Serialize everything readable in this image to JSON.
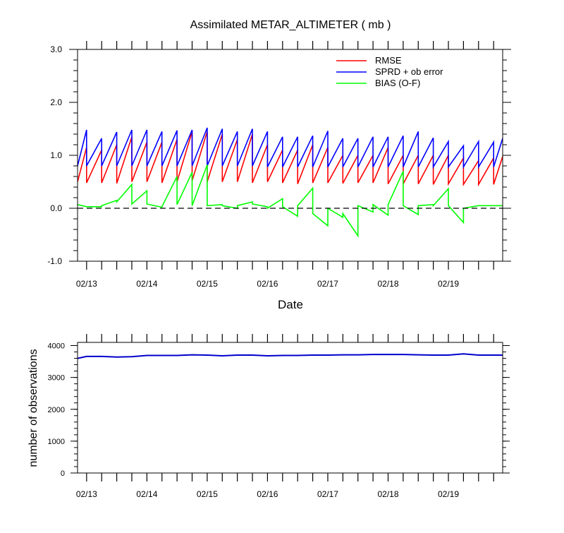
{
  "chart_data": [
    {
      "type": "line",
      "title": "Assimilated METAR_ALTIMETER ( mb )",
      "xlabel": "Date",
      "ylabel": "",
      "xlim": [
        12.85,
        19.9
      ],
      "ylim": [
        -1.0,
        3.0
      ],
      "yticks": [
        -1.0,
        0.0,
        1.0,
        2.0,
        3.0
      ],
      "ytick_labels": [
        "-1.0",
        "0.0",
        "1.0",
        "2.0",
        "3.0"
      ],
      "xticks": [
        13,
        14,
        15,
        16,
        17,
        18,
        19
      ],
      "xtick_labels": [
        "02/13",
        "02/14",
        "02/15",
        "02/16",
        "02/17",
        "02/18",
        "02/19"
      ],
      "reference_line": {
        "y": 0.0,
        "style": "dashed"
      },
      "legend": [
        "RMSE",
        "SPRD + ob error",
        "BIAS (O-F)"
      ],
      "legend_position": "top-right",
      "cycle_starts": [
        12.85,
        13.0,
        13.25,
        13.5,
        13.75,
        14.0,
        14.25,
        14.5,
        14.75,
        15.0,
        15.25,
        15.5,
        15.75,
        16.0,
        16.25,
        16.5,
        16.75,
        17.0,
        17.25,
        17.5,
        17.75,
        18.0,
        18.25,
        18.5,
        18.75,
        19.0,
        19.25,
        19.5,
        19.75
      ],
      "series": [
        {
          "name": "RMSE",
          "color": "#ff0000",
          "start": [
            0.5,
            0.48,
            0.48,
            0.47,
            0.5,
            0.5,
            0.48,
            0.5,
            0.52,
            0.5,
            0.5,
            0.5,
            0.48,
            0.5,
            0.48,
            0.46,
            0.48,
            0.48,
            0.47,
            0.48,
            0.48,
            0.46,
            0.46,
            0.46,
            0.45,
            0.46,
            0.45,
            0.45,
            0.45
          ],
          "end": [
            1.15,
            1.1,
            1.2,
            1.35,
            1.25,
            1.25,
            1.3,
            1.45,
            1.45,
            1.4,
            1.3,
            1.4,
            1.2,
            1.1,
            1.1,
            1.2,
            1.15,
            1.0,
            1.0,
            1.0,
            1.15,
            1.0,
            1.0,
            1.0,
            1.0,
            0.95,
            0.9,
            0.95,
            0.98
          ]
        },
        {
          "name": "SPRD + ob error",
          "color": "#0000ff",
          "start": [
            0.8,
            0.8,
            0.8,
            0.8,
            0.8,
            0.8,
            0.8,
            0.8,
            0.8,
            0.8,
            0.8,
            0.8,
            0.8,
            0.78,
            0.78,
            0.78,
            0.78,
            0.78,
            0.78,
            0.78,
            0.78,
            0.78,
            0.78,
            0.78,
            0.78,
            0.78,
            0.78,
            0.78,
            0.78
          ],
          "end": [
            1.48,
            1.32,
            1.44,
            1.48,
            1.48,
            1.45,
            1.47,
            1.48,
            1.52,
            1.5,
            1.45,
            1.5,
            1.45,
            1.35,
            1.35,
            1.37,
            1.46,
            1.32,
            1.32,
            1.35,
            1.35,
            1.37,
            1.45,
            1.33,
            1.26,
            1.18,
            1.26,
            1.25,
            1.32
          ]
        },
        {
          "name": "BIAS (O-F)",
          "color": "#00ff00",
          "start": [
            0.07,
            0.03,
            0.05,
            0.12,
            0.08,
            0.08,
            0.03,
            0.07,
            0.05,
            0.05,
            0.05,
            0.05,
            0.08,
            0.0,
            0.03,
            0.05,
            -0.1,
            0.0,
            -0.1,
            0.05,
            0.07,
            0.07,
            0.05,
            0.05,
            0.05,
            0.05,
            0.0,
            0.05,
            0.05
          ],
          "end": [
            0.03,
            0.03,
            0.15,
            0.45,
            0.33,
            0.02,
            0.6,
            0.68,
            0.82,
            0.07,
            0.0,
            0.12,
            0.03,
            0.18,
            -0.15,
            0.38,
            -0.33,
            -0.17,
            -0.52,
            -0.07,
            -0.13,
            0.7,
            -0.12,
            0.07,
            0.37,
            -0.27,
            0.05,
            0.05,
            0.05
          ]
        }
      ]
    },
    {
      "type": "line",
      "title": "",
      "xlabel": "",
      "ylabel": "number of observations",
      "xlim": [
        12.85,
        19.9
      ],
      "ylim": [
        0,
        4000
      ],
      "ymax_display": 4100,
      "yticks": [
        0,
        1000,
        2000,
        3000,
        4000
      ],
      "ytick_labels": [
        "0",
        "1000",
        "2000",
        "3000",
        "4000"
      ],
      "xticks": [
        13,
        14,
        15,
        16,
        17,
        18,
        19
      ],
      "xtick_labels": [
        "02/13",
        "02/14",
        "02/15",
        "02/16",
        "02/17",
        "02/18",
        "02/19"
      ],
      "series": [
        {
          "name": "observations",
          "color": "#0000cc",
          "x": [
            12.85,
            13.0,
            13.25,
            13.5,
            13.75,
            14.0,
            14.25,
            14.5,
            14.75,
            15.0,
            15.25,
            15.5,
            15.75,
            16.0,
            16.25,
            16.5,
            16.75,
            17.0,
            17.25,
            17.5,
            17.75,
            18.0,
            18.25,
            18.5,
            18.75,
            19.0,
            19.25,
            19.5,
            19.75,
            19.9
          ],
          "values": [
            3600,
            3660,
            3660,
            3640,
            3650,
            3690,
            3690,
            3690,
            3710,
            3700,
            3680,
            3700,
            3700,
            3680,
            3690,
            3690,
            3700,
            3700,
            3710,
            3710,
            3720,
            3720,
            3720,
            3710,
            3700,
            3700,
            3740,
            3700,
            3700,
            3700
          ]
        }
      ]
    }
  ]
}
